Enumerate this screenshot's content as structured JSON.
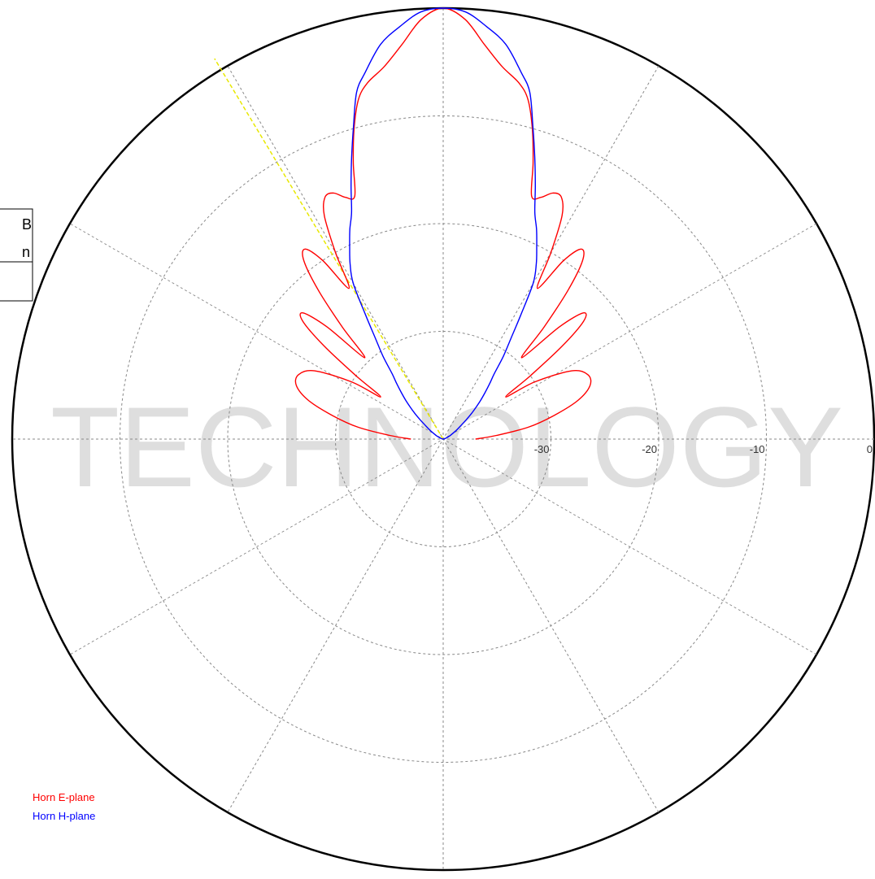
{
  "chart_data": {
    "type": "polar",
    "theta": [
      -90,
      -86,
      -82,
      -78,
      -74,
      -70,
      -66,
      -62,
      -58,
      -56,
      -54,
      -52,
      -50,
      -48,
      -46,
      -44,
      -42,
      -40,
      -38,
      -36,
      -34,
      -32,
      -30,
      -28,
      -26,
      -24,
      -22,
      -20,
      -18,
      -16,
      -14,
      -12,
      -9,
      -6,
      -3,
      0,
      3,
      6,
      9,
      12,
      14,
      16,
      18,
      20,
      22,
      24,
      26,
      28,
      30,
      32,
      34,
      36,
      38,
      40,
      42,
      44,
      46,
      48,
      50,
      52,
      54,
      56,
      58,
      62,
      66,
      70,
      74,
      78,
      82,
      86,
      90
    ],
    "series": [
      {
        "name": "Horn E-plane",
        "color": "#ff0000",
        "values": [
          -37,
          -35,
          -32,
          -29.5,
          -27,
          -25.5,
          -25.3,
          -26.5,
          -30,
          -33,
          -30,
          -26,
          -23,
          -22.5,
          -25,
          -29.5,
          -26,
          -22,
          -19,
          -18.2,
          -20,
          -23.5,
          -20,
          -16.5,
          -15,
          -15,
          -15.8,
          -16,
          -13,
          -10,
          -7.5,
          -6.2,
          -5,
          -3.2,
          -1,
          0,
          -1,
          -3.2,
          -5,
          -6.2,
          -7.5,
          -10,
          -13,
          -16,
          -15.8,
          -15,
          -15,
          -16.5,
          -20,
          -23.5,
          -20,
          -18.2,
          -19,
          -22,
          -26,
          -29.5,
          -25,
          -22.5,
          -23,
          -26,
          -30,
          -33,
          -30,
          -26.5,
          -25.3,
          -25.5,
          -27,
          -29.5,
          -32,
          -35,
          -37
        ]
      },
      {
        "name": "Horn H-plane",
        "color": "#0000ff",
        "values": [
          -40,
          -40,
          -40,
          -39.9,
          -39.8,
          -39.7,
          -39.5,
          -39.2,
          -38.8,
          -38.5,
          -38.2,
          -37.8,
          -37.2,
          -36.5,
          -35.8,
          -35,
          -34.2,
          -33.3,
          -32.3,
          -30.5,
          -28.8,
          -26.4,
          -23.3,
          -21.6,
          -20.2,
          -18.7,
          -17.3,
          -15,
          -12.5,
          -9.8,
          -6.8,
          -5.2,
          -2.9,
          -1.5,
          -0.3,
          0,
          -0.3,
          -1.5,
          -2.9,
          -5.2,
          -6.8,
          -9.8,
          -12.5,
          -15,
          -17.3,
          -18.7,
          -20.2,
          -21.6,
          -23.3,
          -26.4,
          -28.8,
          -30.5,
          -32.3,
          -33.3,
          -34.2,
          -35,
          -35.8,
          -36.5,
          -37.2,
          -37.8,
          -38.2,
          -38.5,
          -38.8,
          -39.2,
          -39.5,
          -39.7,
          -39.8,
          -39.9,
          -40,
          -40,
          -40
        ]
      }
    ],
    "rlim": [
      -40,
      0
    ],
    "rticks": [
      -30,
      -20,
      -10,
      0
    ],
    "thetagrid": [
      0,
      30,
      60,
      90,
      120,
      150
    ],
    "cursor_theta": -31
  },
  "watermark": "TECHNOLOGY",
  "side_box": [
    "B",
    "n"
  ]
}
